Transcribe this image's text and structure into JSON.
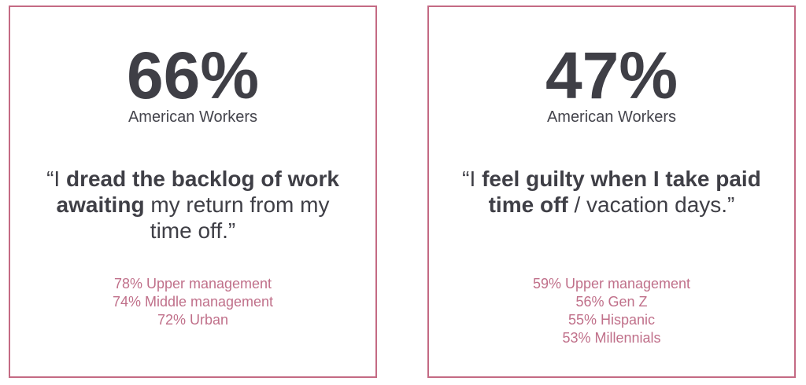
{
  "accent_color": "#c46a84",
  "cards": [
    {
      "percent": "66%",
      "population": "American Workers",
      "quote": [
        {
          "text": "“I ",
          "bold": false
        },
        {
          "text": "dread the backlog of work awaiting",
          "bold": true
        },
        {
          "text": " my return from my time off.”",
          "bold": false
        }
      ],
      "stats": [
        "78% Upper management",
        "74% Middle management",
        "72% Urban"
      ]
    },
    {
      "percent": "47%",
      "population": "American Workers",
      "quote": [
        {
          "text": "“I ",
          "bold": false
        },
        {
          "text": "feel guilty when I take paid time off",
          "bold": true
        },
        {
          "text": " / vacation days.”",
          "bold": false
        }
      ],
      "stats": [
        "59% Upper management",
        "56% Gen Z",
        "55% Hispanic",
        "53% Millennials"
      ]
    }
  ]
}
